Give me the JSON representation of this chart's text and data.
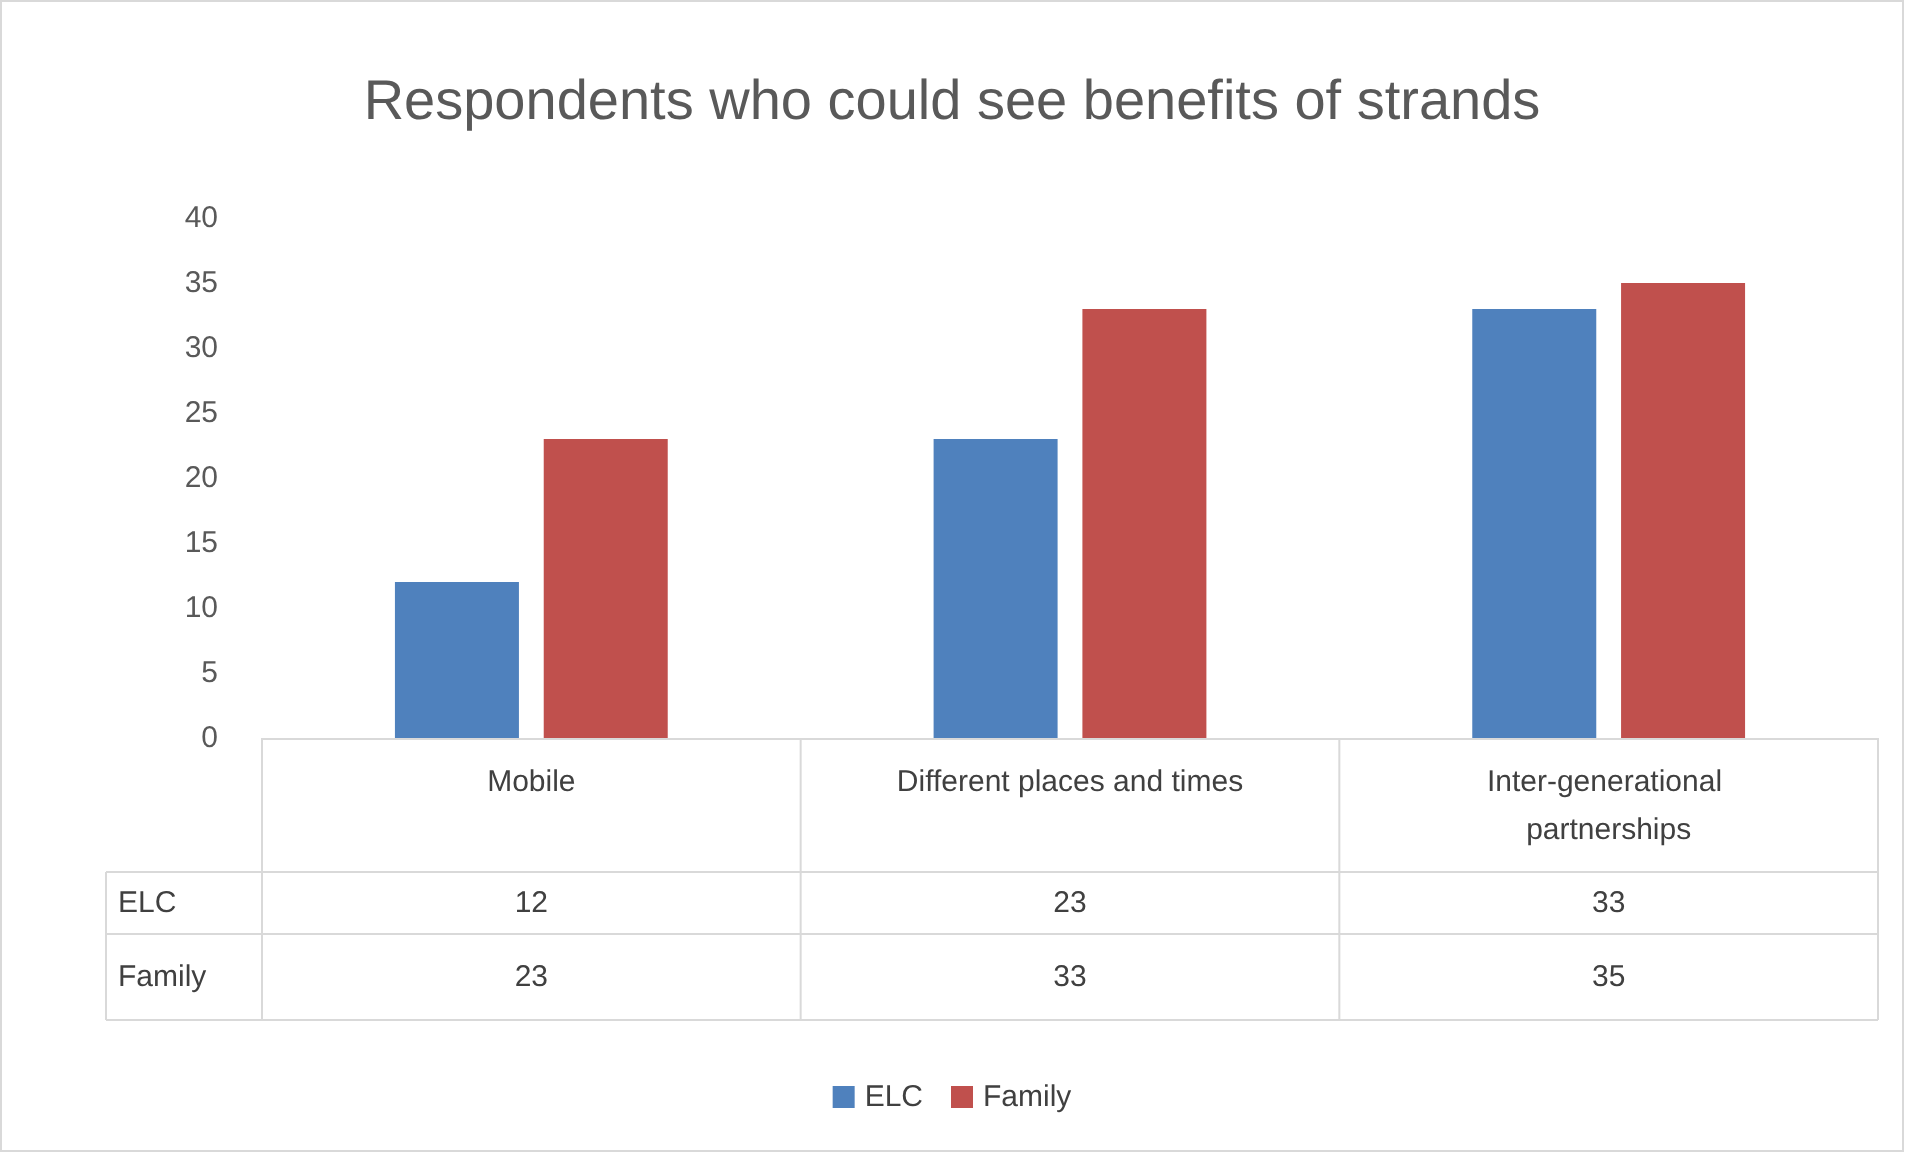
{
  "chart_data": {
    "type": "bar",
    "title": "Respondents who could see benefits of strands",
    "categories": [
      "Mobile",
      "Different places and times",
      "Inter-generational partnerships"
    ],
    "series": [
      {
        "name": "ELC",
        "color": "#4f81bd",
        "values": [
          12,
          23,
          33
        ]
      },
      {
        "name": "Family",
        "color": "#c0504d",
        "values": [
          23,
          33,
          35
        ]
      }
    ],
    "ylim": [
      0,
      40
    ],
    "yticks": [
      0,
      5,
      10,
      15,
      20,
      25,
      30,
      35,
      40
    ],
    "grid": false,
    "legend": "bottom",
    "data_labels": true
  }
}
